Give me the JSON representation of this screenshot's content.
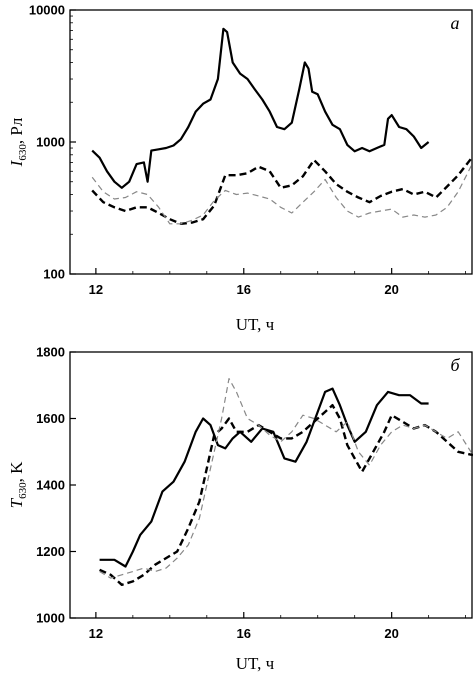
{
  "chart_data": [
    {
      "panel": "а",
      "type": "line",
      "xlabel": "UT, ч",
      "ylabel": "I630, Рл",
      "ylabel_main": "I",
      "ylabel_sub": "630",
      "ylabel_unit": ", Рл",
      "ylog": true,
      "xlim": [
        11.3,
        22.2
      ],
      "ylim": [
        100,
        10000
      ],
      "xticks": [
        12,
        16,
        20
      ],
      "xtick_labels": [
        "12",
        "16",
        "20"
      ],
      "yticks": [
        100,
        1000,
        10000
      ],
      "ytick_labels": [
        "100",
        "1000",
        "10000"
      ],
      "series": [
        {
          "style": "solid",
          "color": "#000000",
          "x": [
            11.9,
            12.1,
            12.3,
            12.5,
            12.7,
            12.9,
            13.1,
            13.3,
            13.4,
            13.5,
            13.7,
            13.9,
            14.1,
            14.3,
            14.5,
            14.7,
            14.9,
            15.1,
            15.3,
            15.45,
            15.55,
            15.7,
            15.9,
            16.1,
            16.3,
            16.5,
            16.7,
            16.9,
            17.1,
            17.3,
            17.5,
            17.65,
            17.75,
            17.85,
            18.0,
            18.2,
            18.4,
            18.6,
            18.8,
            19.0,
            19.2,
            19.4,
            19.6,
            19.8,
            19.9,
            20.0,
            20.2,
            20.4,
            20.6,
            20.8,
            21.0
          ],
          "y": [
            860,
            760,
            600,
            500,
            450,
            500,
            680,
            700,
            500,
            860,
            880,
            900,
            940,
            1050,
            1300,
            1700,
            1950,
            2100,
            3000,
            7200,
            6800,
            4000,
            3300,
            3000,
            2500,
            2100,
            1700,
            1300,
            1250,
            1400,
            2500,
            4000,
            3600,
            2400,
            2300,
            1700,
            1350,
            1250,
            950,
            850,
            900,
            850,
            900,
            950,
            1500,
            1600,
            1300,
            1250,
            1100,
            900,
            1000
          ]
        },
        {
          "style": "dashed",
          "color": "#000000",
          "x": [
            11.9,
            12.2,
            12.5,
            12.8,
            13.1,
            13.4,
            13.7,
            14.0,
            14.3,
            14.6,
            14.9,
            15.2,
            15.5,
            15.8,
            16.1,
            16.4,
            16.7,
            17.0,
            17.3,
            17.6,
            17.9,
            18.2,
            18.5,
            18.8,
            19.1,
            19.4,
            19.7,
            20.0,
            20.3,
            20.6,
            20.9,
            21.2,
            21.5,
            21.8,
            22.2
          ],
          "y": [
            430,
            350,
            320,
            300,
            320,
            320,
            290,
            260,
            240,
            245,
            260,
            330,
            560,
            560,
            580,
            650,
            600,
            450,
            470,
            550,
            730,
            600,
            480,
            420,
            380,
            350,
            390,
            420,
            440,
            400,
            420,
            380,
            460,
            560,
            780
          ]
        },
        {
          "style": "thin-dashed",
          "color": "#888888",
          "x": [
            11.9,
            12.2,
            12.5,
            12.8,
            13.1,
            13.4,
            13.7,
            14.0,
            14.3,
            14.6,
            14.9,
            15.2,
            15.5,
            15.8,
            16.1,
            16.4,
            16.7,
            17.0,
            17.3,
            17.6,
            17.9,
            18.2,
            18.5,
            18.8,
            19.1,
            19.4,
            19.7,
            20.0,
            20.3,
            20.6,
            20.9,
            21.2,
            21.5,
            21.8,
            22.2
          ],
          "y": [
            540,
            420,
            370,
            380,
            420,
            400,
            320,
            240,
            240,
            255,
            280,
            360,
            430,
            400,
            410,
            390,
            370,
            320,
            290,
            350,
            420,
            520,
            380,
            300,
            270,
            290,
            300,
            310,
            270,
            280,
            270,
            280,
            320,
            420,
            700
          ]
        }
      ]
    },
    {
      "panel": "б",
      "type": "line",
      "xlabel": "UT, ч",
      "ylabel": "T630, K",
      "ylabel_main": "T",
      "ylabel_sub": "630",
      "ylabel_unit": ", K",
      "ylog": false,
      "xlim": [
        11.3,
        22.2
      ],
      "ylim": [
        1000,
        1800
      ],
      "xticks": [
        12,
        16,
        20
      ],
      "xtick_labels": [
        "12",
        "16",
        "20"
      ],
      "yticks": [
        1000,
        1200,
        1400,
        1600,
        1800
      ],
      "ytick_labels": [
        "1000",
        "1200",
        "1400",
        "1600",
        "1800"
      ],
      "series": [
        {
          "style": "solid",
          "color": "#000000",
          "x": [
            12.1,
            12.5,
            12.8,
            13.0,
            13.2,
            13.5,
            13.8,
            14.1,
            14.4,
            14.7,
            14.9,
            15.1,
            15.3,
            15.5,
            15.7,
            15.9,
            16.2,
            16.5,
            16.8,
            17.1,
            17.4,
            17.7,
            18.0,
            18.2,
            18.4,
            18.6,
            18.8,
            19.0,
            19.3,
            19.6,
            19.9,
            20.2,
            20.5,
            20.8,
            21.0
          ],
          "y": [
            1175,
            1175,
            1155,
            1200,
            1250,
            1290,
            1380,
            1410,
            1470,
            1560,
            1600,
            1580,
            1520,
            1510,
            1540,
            1560,
            1530,
            1570,
            1560,
            1480,
            1470,
            1530,
            1620,
            1680,
            1690,
            1640,
            1580,
            1530,
            1560,
            1640,
            1680,
            1670,
            1670,
            1645,
            1645
          ]
        },
        {
          "style": "dashed",
          "color": "#000000",
          "x": [
            12.1,
            12.4,
            12.7,
            13.0,
            13.3,
            13.6,
            13.9,
            14.2,
            14.5,
            14.8,
            15.0,
            15.2,
            15.4,
            15.6,
            15.8,
            16.1,
            16.4,
            16.7,
            17.0,
            17.3,
            17.6,
            17.9,
            18.2,
            18.4,
            18.6,
            18.8,
            19.0,
            19.2,
            19.5,
            19.8,
            20.0,
            20.3,
            20.6,
            20.9,
            21.2,
            21.5,
            21.8,
            22.2
          ],
          "y": [
            1145,
            1130,
            1100,
            1110,
            1130,
            1160,
            1180,
            1200,
            1270,
            1350,
            1450,
            1550,
            1570,
            1600,
            1560,
            1560,
            1580,
            1560,
            1540,
            1540,
            1560,
            1590,
            1620,
            1640,
            1600,
            1520,
            1480,
            1440,
            1500,
            1560,
            1610,
            1590,
            1570,
            1580,
            1560,
            1530,
            1500,
            1490
          ]
        },
        {
          "style": "thin-dashed",
          "color": "#888888",
          "x": [
            12.1,
            12.4,
            12.7,
            13.0,
            13.3,
            13.6,
            13.9,
            14.2,
            14.5,
            14.8,
            15.0,
            15.2,
            15.4,
            15.6,
            15.8,
            16.1,
            16.4,
            16.7,
            17.0,
            17.3,
            17.6,
            17.9,
            18.2,
            18.5,
            18.8,
            19.1,
            19.4,
            19.7,
            20.0,
            20.3,
            20.6,
            20.9,
            21.2,
            21.5,
            21.8,
            22.2
          ],
          "y": [
            1140,
            1120,
            1130,
            1140,
            1150,
            1140,
            1150,
            1180,
            1220,
            1300,
            1400,
            1500,
            1600,
            1720,
            1680,
            1600,
            1580,
            1550,
            1530,
            1560,
            1610,
            1600,
            1580,
            1560,
            1590,
            1500,
            1460,
            1520,
            1560,
            1580,
            1570,
            1580,
            1560,
            1540,
            1560,
            1490
          ]
        }
      ]
    }
  ]
}
